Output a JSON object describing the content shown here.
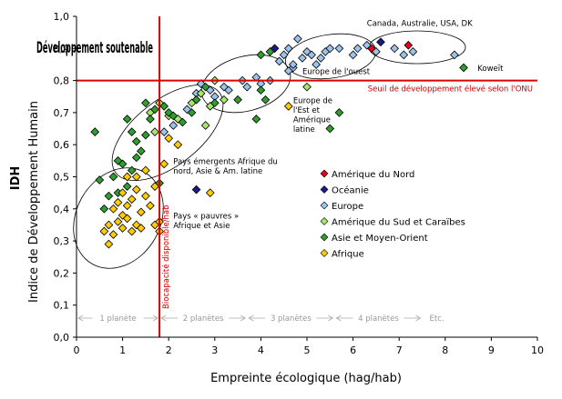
{
  "chart_data": {
    "type": "scatter",
    "title": "Développement soutenable",
    "xlabel": "Empreinte écologique (hag/hab)",
    "ylabel": "Indice de Développement Humain",
    "ylabel_short": "IDH",
    "xlim": [
      0,
      10
    ],
    "ylim": [
      0,
      1.0
    ],
    "x_ticks": [
      "0",
      "1",
      "2",
      "3",
      "4",
      "5",
      "6",
      "7",
      "8",
      "9",
      "10"
    ],
    "y_ticks": [
      "0,0",
      "0,1",
      "0,2",
      "0,3",
      "0,4",
      "0,5",
      "0,6",
      "0,7",
      "0,8",
      "0,9",
      "1,0"
    ],
    "grid": false,
    "legend_position": "right",
    "reference_lines": {
      "horizontal": {
        "y": 0.8,
        "label": "Seuil de développement élevé selon l'ONU",
        "color": "#dd0000"
      },
      "vertical": {
        "x": 1.8,
        "label": "Biocapacité disponible/hab",
        "color": "#dd0000"
      }
    },
    "planets": {
      "labels": [
        "1 planète",
        "2 planètes",
        "3 planètes",
        "4 planètes",
        "Etc."
      ],
      "boundaries": [
        0,
        1.8,
        3.7,
        5.6,
        7.5
      ]
    },
    "annotations": [
      {
        "text": "Canada, Australie, USA, DK",
        "x": 6.3,
        "y": 0.97
      },
      {
        "text": "Europe de l'ouest",
        "x": 4.9,
        "y": 0.82
      },
      {
        "text": "Koweït",
        "x": 8.7,
        "y": 0.83
      },
      {
        "text": "Europe de",
        "x": 4.7,
        "y": 0.73
      },
      {
        "text": "l'Est et",
        "x": 4.7,
        "y": 0.7
      },
      {
        "text": "Amérique",
        "x": 4.7,
        "y": 0.67
      },
      {
        "text": "latine",
        "x": 4.7,
        "y": 0.64
      },
      {
        "text": "Pays émergents Afrique du",
        "x": 2.1,
        "y": 0.54
      },
      {
        "text": "nord, Asie & Am. latine",
        "x": 2.1,
        "y": 0.51
      },
      {
        "text": "Pays « pauvres »",
        "x": 2.1,
        "y": 0.37
      },
      {
        "text": "Afrique et Asie",
        "x": 2.1,
        "y": 0.34
      }
    ],
    "series": [
      {
        "name": "Amérique du Nord",
        "color": "#e8001c",
        "points": [
          [
            6.4,
            0.9
          ],
          [
            7.2,
            0.91
          ]
        ]
      },
      {
        "name": "Océanie",
        "color": "#1a1a8c",
        "points": [
          [
            4.3,
            0.9
          ],
          [
            6.6,
            0.92
          ],
          [
            2.6,
            0.46
          ]
        ]
      },
      {
        "name": "Europe",
        "color": "#9cc3ec",
        "points": [
          [
            3.3,
            0.77
          ],
          [
            3.6,
            0.8
          ],
          [
            3.7,
            0.78
          ],
          [
            3.9,
            0.81
          ],
          [
            4.0,
            0.79
          ],
          [
            4.2,
            0.8
          ],
          [
            4.4,
            0.86
          ],
          [
            4.5,
            0.88
          ],
          [
            4.6,
            0.9
          ],
          [
            4.7,
            0.84
          ],
          [
            4.8,
            0.93
          ],
          [
            4.9,
            0.87
          ],
          [
            5.0,
            0.89
          ],
          [
            5.1,
            0.88
          ],
          [
            5.2,
            0.85
          ],
          [
            5.3,
            0.87
          ],
          [
            5.4,
            0.89
          ],
          [
            5.5,
            0.9
          ],
          [
            5.7,
            0.9
          ],
          [
            6.0,
            0.88
          ],
          [
            6.1,
            0.9
          ],
          [
            6.3,
            0.91
          ],
          [
            6.5,
            0.89
          ],
          [
            6.9,
            0.9
          ],
          [
            7.1,
            0.88
          ],
          [
            7.3,
            0.89
          ],
          [
            8.2,
            0.88
          ],
          [
            2.6,
            0.76
          ],
          [
            2.9,
            0.77
          ],
          [
            3.2,
            0.78
          ],
          [
            2.7,
            0.79
          ],
          [
            3.0,
            0.75
          ],
          [
            1.9,
            0.64
          ],
          [
            2.1,
            0.66
          ],
          [
            2.4,
            0.71
          ],
          [
            4.6,
            0.83
          ],
          [
            4.7,
            0.85
          ]
        ]
      },
      {
        "name": "Amérique du Sud et Caraïbes",
        "color": "#a7e66a",
        "points": [
          [
            1.8,
            0.73
          ],
          [
            2.0,
            0.69
          ],
          [
            2.2,
            0.68
          ],
          [
            2.5,
            0.73
          ],
          [
            2.7,
            0.76
          ],
          [
            2.9,
            0.72
          ],
          [
            3.0,
            0.8
          ],
          [
            3.2,
            0.74
          ],
          [
            1.7,
            0.64
          ],
          [
            1.6,
            0.7
          ],
          [
            2.8,
            0.66
          ],
          [
            5.0,
            0.78
          ]
        ]
      },
      {
        "name": "Asie et Moyen-Orient",
        "color": "#2e9e2e",
        "points": [
          [
            0.4,
            0.64
          ],
          [
            0.5,
            0.49
          ],
          [
            0.6,
            0.4
          ],
          [
            0.7,
            0.44
          ],
          [
            0.8,
            0.5
          ],
          [
            0.9,
            0.45
          ],
          [
            1.0,
            0.54
          ],
          [
            1.1,
            0.47
          ],
          [
            1.2,
            0.52
          ],
          [
            1.3,
            0.61
          ],
          [
            1.4,
            0.58
          ],
          [
            1.5,
            0.63
          ],
          [
            1.6,
            0.68
          ],
          [
            1.7,
            0.71
          ],
          [
            1.8,
            0.48
          ],
          [
            1.9,
            0.72
          ],
          [
            2.0,
            0.7
          ],
          [
            2.1,
            0.69
          ],
          [
            2.3,
            0.67
          ],
          [
            2.5,
            0.7
          ],
          [
            2.6,
            0.74
          ],
          [
            2.8,
            0.78
          ],
          [
            3.0,
            0.73
          ],
          [
            3.5,
            0.74
          ],
          [
            3.9,
            0.68
          ],
          [
            4.0,
            0.77
          ],
          [
            4.1,
            0.74
          ],
          [
            5.5,
            0.65
          ],
          [
            5.7,
            0.7
          ],
          [
            8.4,
            0.84
          ],
          [
            4.2,
            0.89
          ],
          [
            4.0,
            0.88
          ],
          [
            1.2,
            0.64
          ],
          [
            1.5,
            0.73
          ],
          [
            1.1,
            0.68
          ],
          [
            0.9,
            0.55
          ],
          [
            1.3,
            0.56
          ]
        ]
      },
      {
        "name": "Afrique",
        "color": "#ffcc00",
        "points": [
          [
            0.6,
            0.33
          ],
          [
            0.7,
            0.29
          ],
          [
            0.7,
            0.35
          ],
          [
            0.8,
            0.32
          ],
          [
            0.8,
            0.4
          ],
          [
            0.9,
            0.42
          ],
          [
            1.0,
            0.34
          ],
          [
            1.0,
            0.38
          ],
          [
            1.0,
            0.45
          ],
          [
            1.1,
            0.37
          ],
          [
            1.1,
            0.41
          ],
          [
            1.2,
            0.33
          ],
          [
            1.2,
            0.43
          ],
          [
            1.3,
            0.35
          ],
          [
            1.3,
            0.46
          ],
          [
            1.4,
            0.34
          ],
          [
            1.4,
            0.39
          ],
          [
            1.5,
            0.44
          ],
          [
            1.5,
            0.52
          ],
          [
            1.6,
            0.41
          ],
          [
            1.7,
            0.35
          ],
          [
            1.7,
            0.47
          ],
          [
            1.8,
            0.33
          ],
          [
            1.8,
            0.36
          ],
          [
            1.9,
            0.54
          ],
          [
            2.0,
            0.62
          ],
          [
            2.2,
            0.6
          ],
          [
            2.9,
            0.45
          ],
          [
            4.6,
            0.72
          ],
          [
            1.1,
            0.5
          ],
          [
            0.9,
            0.36
          ],
          [
            1.3,
            0.5
          ]
        ]
      }
    ]
  }
}
